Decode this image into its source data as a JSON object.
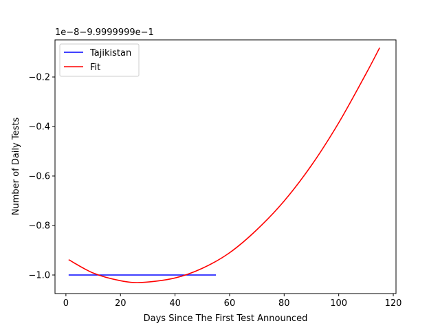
{
  "chart_data": {
    "type": "line",
    "title": "",
    "xlabel": "Days Since The First Test Announced",
    "ylabel": "Number of Daily Tests",
    "y_offset_label": "1e−8−9.9999999e−1",
    "xlim": [
      -4,
      121
    ],
    "ylim": [
      -1.075,
      -0.05
    ],
    "xticks": [
      0,
      20,
      40,
      60,
      80,
      100,
      120
    ],
    "xtick_labels": [
      "0",
      "20",
      "40",
      "60",
      "80",
      "100",
      "120"
    ],
    "yticks": [
      -1.0,
      -0.8,
      -0.6,
      -0.4,
      -0.2
    ],
    "ytick_labels": [
      "−1.0",
      "−0.8",
      "−0.6",
      "−0.4",
      "−0.2"
    ],
    "grid": false,
    "legend_position": "top-left",
    "series": [
      {
        "name": "Tajikistan",
        "color": "#0000ff",
        "x": [
          1,
          55
        ],
        "y": [
          -1.0,
          -1.0
        ]
      },
      {
        "name": "Fit",
        "color": "#ff0000",
        "x": [
          1,
          10,
          20,
          28,
          40,
          50,
          60,
          70,
          80,
          90,
          100,
          110,
          115
        ],
        "y": [
          -0.938,
          -0.992,
          -1.023,
          -1.03,
          -1.012,
          -0.973,
          -0.91,
          -0.817,
          -0.701,
          -0.557,
          -0.385,
          -0.187,
          -0.082
        ]
      }
    ]
  }
}
